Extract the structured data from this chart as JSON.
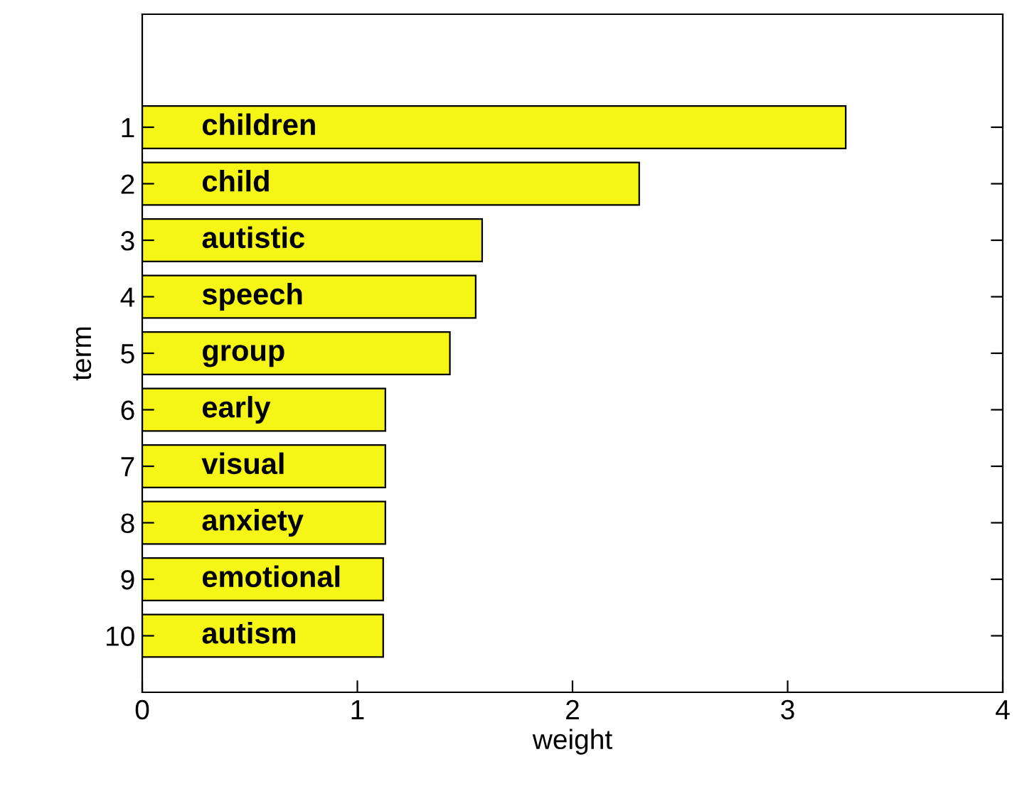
{
  "chart_data": {
    "type": "bar",
    "orientation": "horizontal",
    "xlabel": "weight",
    "ylabel": "term",
    "categories": [
      "1",
      "2",
      "3",
      "4",
      "5",
      "6",
      "7",
      "8",
      "9",
      "10"
    ],
    "values": [
      3.27,
      2.31,
      1.58,
      1.55,
      1.43,
      1.13,
      1.13,
      1.13,
      1.12,
      1.12
    ],
    "color": "#f5f516",
    "xlim": [
      0,
      4
    ],
    "xticks": [
      0,
      1,
      2,
      3,
      4
    ],
    "grid": false,
    "legend": false,
    "annotations": [
      {
        "text": "children",
        "y": "1"
      },
      {
        "text": "child",
        "y": "2"
      },
      {
        "text": "autistic",
        "y": "3"
      },
      {
        "text": "speech",
        "y": "4"
      },
      {
        "text": "group",
        "y": "5"
      },
      {
        "text": "early",
        "y": "6"
      },
      {
        "text": "visual",
        "y": "7"
      },
      {
        "text": "anxiety",
        "y": "8"
      },
      {
        "text": "emotional",
        "y": "9"
      },
      {
        "text": "autism",
        "y": "10"
      }
    ]
  }
}
